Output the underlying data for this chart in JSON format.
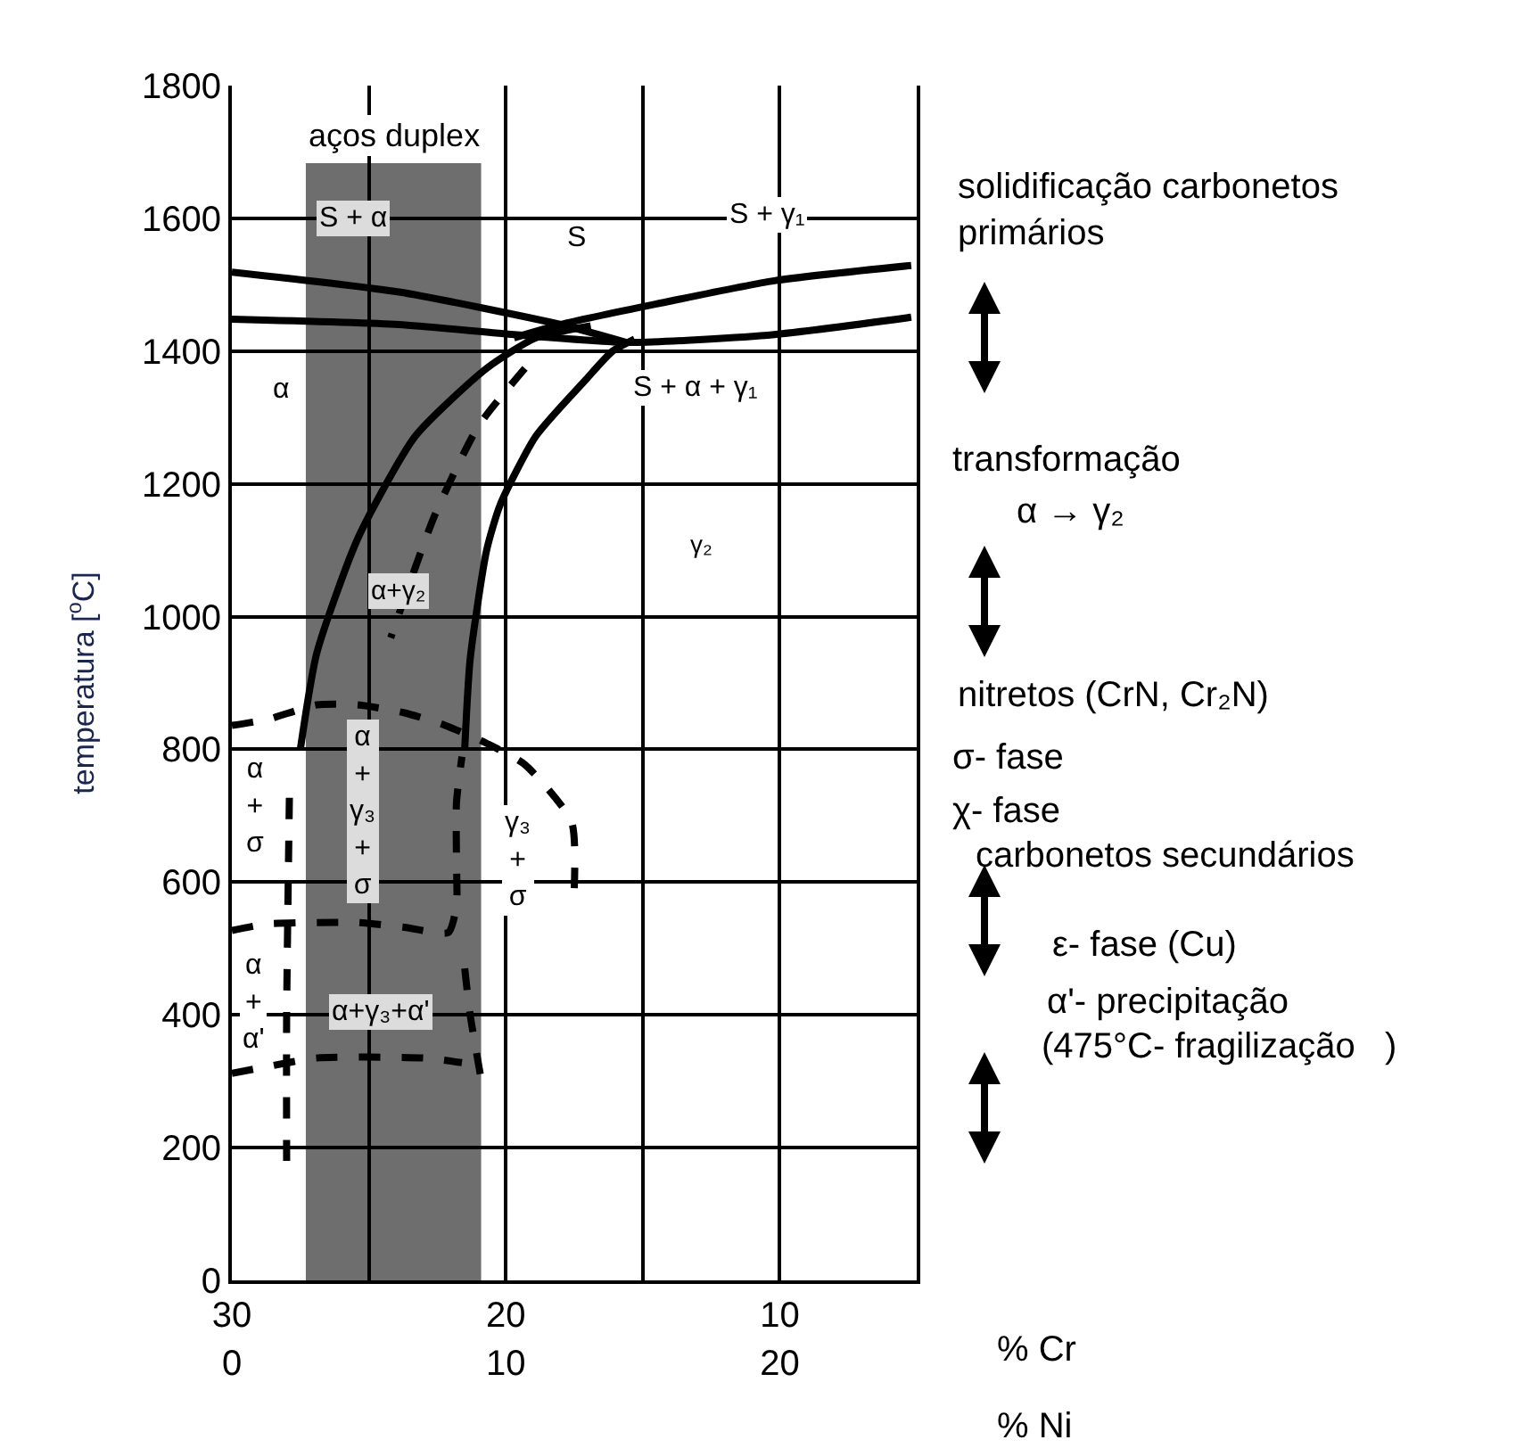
{
  "chart_data": {
    "type": "line",
    "ylabel": "temperatura [$^{o}$C]",
    "xlabel": "% Cr",
    "x2label": "% Ni",
    "xlim": [
      30,
      5
    ],
    "xticks": [
      30,
      {
        "value": 25,
        "label": null
      },
      20,
      {
        "value": 15,
        "label": null
      },
      10,
      {
        "value": 5,
        "label": null
      }
    ],
    "x2lim": [
      0,
      25
    ],
    "x2ticks": [
      0,
      10,
      20
    ],
    "ylim": [
      0,
      1800
    ],
    "yticks": [
      0,
      200,
      400,
      600,
      800,
      1000,
      1200,
      1400,
      1600,
      1800
    ],
    "grid": true,
    "marker": "none",
    "bands": [
      {
        "axis": "x",
        "from": 27.3,
        "to": 20.9,
        "label": "aços duplex",
        "color": "#6e6e6e"
      }
    ],
    "series": [
      {
        "color": "#000000",
        "line_style": "solid",
        "x": [
          30,
          23.9,
          18.0,
          15.6
        ],
        "values": [
          1519,
          1489,
          1440,
          1413
        ]
      },
      {
        "color": "#000000",
        "line_style": "solid",
        "x": [
          5.2,
          10.2,
          14.5,
          18.0,
          19.7
        ],
        "values": [
          1529,
          1506,
          1471,
          1440,
          1420
        ]
      },
      {
        "color": "#000000",
        "line_style": "solid",
        "x": [
          30,
          23.9,
          19.7,
          15.4,
          10.2,
          5.2
        ],
        "values": [
          1448,
          1440,
          1425,
          1413,
          1425,
          1451
        ]
      },
      {
        "color": "#000000",
        "line_style": "solid",
        "x": [
          27.5,
          26.9,
          25.4,
          23.3,
          20.7,
          18.9,
          16.9
        ],
        "values": [
          800,
          945,
          1118,
          1272,
          1374,
          1420,
          1438
        ]
      },
      {
        "color": "#000000",
        "line_style": "solid",
        "x": [
          21.5,
          21.3,
          20.7,
          20.2,
          18.9,
          17.1,
          16.1,
          15.3
        ],
        "values": [
          800,
          936,
          1100,
          1169,
          1272,
          1356,
          1400,
          1418
        ]
      },
      {
        "color": "#000000",
        "line_style": "dashed",
        "x": [
          19.3,
          21.0,
          22.6,
          24.2
        ],
        "values": [
          1374,
          1287,
          1152,
          968
        ]
      },
      {
        "color": "#000000",
        "line_style": "dashed",
        "x": [
          30,
          28.7,
          26.9,
          25.4,
          23.7,
          22.2,
          20.7,
          19.3,
          17.6,
          17.5
        ],
        "values": [
          836,
          845,
          867,
          867,
          855,
          836,
          809,
          777,
          691,
          591
        ]
      },
      {
        "color": "#000000",
        "line_style": "dashed",
        "x": [
          27.9,
          28.0,
          28.0
        ],
        "values": [
          727,
          400,
          180
        ]
      },
      {
        "color": "#000000",
        "line_style": "dashed",
        "x": [
          30,
          28.7,
          26.9,
          25.4,
          23.7,
          22.1,
          21.8,
          21.8,
          21.8,
          21.6
        ],
        "values": [
          527,
          537,
          539,
          539,
          532,
          524,
          565,
          632,
          720,
          789
        ]
      },
      {
        "color": "#000000",
        "line_style": "dashed",
        "x": [
          30,
          28.7,
          26.9,
          23.0,
          21.6
        ],
        "values": [
          312,
          322,
          335,
          335,
          328
        ]
      },
      {
        "color": "#000000",
        "line_style": "dashed",
        "x": [
          21.5,
          21.3,
          20.8
        ],
        "values": [
          470,
          400,
          280
        ]
      }
    ],
    "annotations": [
      "S + α",
      "S",
      "S + γ₁",
      "S + α + γ₁",
      "α",
      "γ₂",
      "α+γ₂",
      "α\n+\nσ",
      "α\n+\nγ₃\n+\nσ",
      "γ₃\n+\nσ",
      "α\n+\nα'",
      "α+γ₃+α'",
      "solidificação carbonetos\nprimários",
      "transformação",
      "α → γ₂",
      "nitretos (CrN, Cr₂N)",
      "σ- fase",
      "χ- fase",
      "carbonetos secundários",
      "ε- fase (Cu)",
      "α'- precipitação",
      "(475°C- fragilização   )"
    ]
  }
}
